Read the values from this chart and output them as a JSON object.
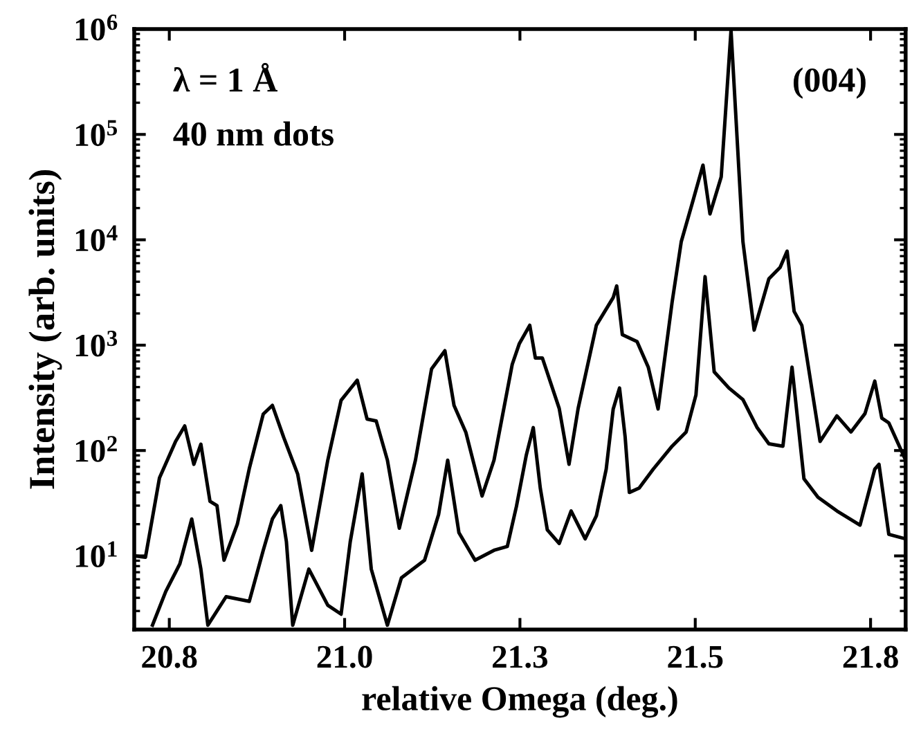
{
  "chart_data": {
    "type": "line",
    "xlabel": "relative Omega (deg.)",
    "ylabel": "Intensity (arb. units)",
    "annotations": [
      "λ = 1 Å",
      "40 nm dots",
      "(004)"
    ],
    "log": "y",
    "grid": false,
    "legend": false,
    "marker": "none",
    "line_style": "solid",
    "xlim": [
      20.7,
      21.8
    ],
    "ylim": [
      2,
      1000000
    ],
    "xticks": [
      {
        "value": 20.75,
        "label": "20.8"
      },
      {
        "value": 21.0,
        "label": "21.0"
      },
      {
        "value": 21.25,
        "label": "21.3"
      },
      {
        "value": 21.5,
        "label": "21.5"
      },
      {
        "value": 21.75,
        "label": "21.8"
      }
    ],
    "yticks": [
      {
        "value": 10,
        "label": "10$^{1}$"
      },
      {
        "value": 100,
        "label": "10$^{2}$"
      },
      {
        "value": 1000,
        "label": "10$^{3}$"
      },
      {
        "value": 10000,
        "label": "10$^{4}$"
      },
      {
        "value": 100000,
        "label": "10$^{5}$"
      },
      {
        "value": 1000000,
        "label": "10$^{6}$"
      }
    ],
    "series": [
      {
        "color": "#000000",
        "x": [
          20.7,
          20.716,
          20.736,
          20.759,
          20.772,
          20.785,
          20.795,
          20.808,
          20.818,
          20.828,
          20.847,
          20.864,
          20.884,
          20.897,
          20.913,
          20.933,
          20.953,
          20.976,
          20.995,
          21.018,
          21.032,
          21.045,
          21.061,
          21.078,
          21.101,
          21.124,
          21.143,
          21.156,
          21.173,
          21.196,
          21.213,
          21.239,
          21.249,
          21.264,
          21.272,
          21.282,
          21.306,
          21.32,
          21.333,
          21.359,
          21.383,
          21.388,
          21.396,
          21.417,
          21.433,
          21.447,
          21.467,
          21.48,
          21.497,
          21.511,
          21.521,
          21.537,
          21.551,
          21.568,
          21.584,
          21.605,
          21.621,
          21.631,
          21.641,
          21.652,
          21.678,
          21.702,
          21.722,
          21.742,
          21.756,
          21.766,
          21.776,
          21.8
        ],
        "values": [
          10,
          9.7,
          55,
          122,
          171,
          74,
          115,
          33,
          30,
          9.1,
          20,
          67,
          222,
          268,
          134,
          60,
          11.3,
          81,
          300,
          465,
          199,
          191,
          81,
          18.3,
          81,
          596,
          885,
          268,
          148,
          37,
          81,
          656,
          1028,
          1545,
          755,
          755,
          251,
          74,
          251,
          1545,
          2830,
          3650,
          1260,
          1080,
          618,
          248,
          2560,
          9570,
          23800,
          51100,
          17600,
          39500,
          970000,
          9570,
          1390,
          4260,
          5470,
          7800,
          2090,
          1540,
          122,
          213,
          150,
          224,
          456,
          203,
          183,
          81
        ]
      },
      {
        "color": "#000000",
        "x": [
          20.726,
          20.745,
          20.765,
          20.782,
          20.795,
          20.805,
          20.831,
          20.864,
          20.884,
          20.897,
          20.909,
          20.917,
          20.926,
          20.949,
          20.976,
          20.995,
          21.008,
          21.025,
          21.038,
          21.061,
          21.081,
          21.114,
          21.134,
          21.147,
          21.163,
          21.186,
          21.213,
          21.232,
          21.245,
          21.259,
          21.269,
          21.279,
          21.289,
          21.306,
          21.323,
          21.343,
          21.359,
          21.373,
          21.383,
          21.392,
          21.4,
          21.406,
          21.42,
          21.44,
          21.467,
          21.487,
          21.501,
          21.514,
          21.527,
          21.548,
          21.568,
          21.588,
          21.605,
          21.625,
          21.638,
          21.655,
          21.675,
          21.702,
          21.735,
          21.756,
          21.762,
          21.776,
          21.8
        ],
        "values": [
          2.2,
          4.6,
          8.4,
          22.4,
          7.5,
          2.2,
          4.1,
          3.7,
          11.3,
          22.4,
          30,
          13.6,
          2.2,
          7.5,
          3.4,
          2.8,
          13.6,
          60,
          7.5,
          2.2,
          6.2,
          9.1,
          24.7,
          81,
          16.6,
          9.1,
          11.3,
          12.3,
          29.5,
          90,
          165,
          44,
          17.7,
          13.1,
          26.7,
          14.5,
          24,
          66.5,
          248,
          392,
          135,
          40,
          44,
          66.5,
          110,
          150,
          337,
          4470,
          558,
          392,
          304,
          166,
          116,
          110,
          618,
          54,
          36,
          26.7,
          19.6,
          66.5,
          74,
          16,
          14.5
        ]
      }
    ]
  }
}
